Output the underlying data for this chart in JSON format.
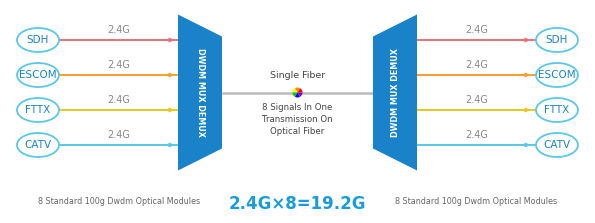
{
  "left_labels": [
    "SDH",
    "ESCOM",
    "FTTX",
    "CATV"
  ],
  "right_labels": [
    "SDH",
    "ESCOM",
    "FTTX",
    "CATV"
  ],
  "signal_labels": [
    "2.4G",
    "2.4G",
    "2.4G",
    "2.4G"
  ],
  "line_colors": [
    "#e8727a",
    "#f5a033",
    "#e8c820",
    "#5bc8e8"
  ],
  "mux_color": "#1a82c8",
  "mux_label": "DWDM MUX DEMUX",
  "center_text1": "Single Fiber",
  "center_text2": "8 Signals In One\nTransmission On\nOptical Fiber",
  "bottom_label": "8 Standard 100g Dwdm Optical Modules",
  "formula": "2.4G×8=19.2G",
  "formula_color": "#1a9cd8",
  "ellipse_border_color": "#5bc8e8",
  "ellipse_text_color": "#1a82c8",
  "label_color": "#888888",
  "center_label_color": "#444444"
}
